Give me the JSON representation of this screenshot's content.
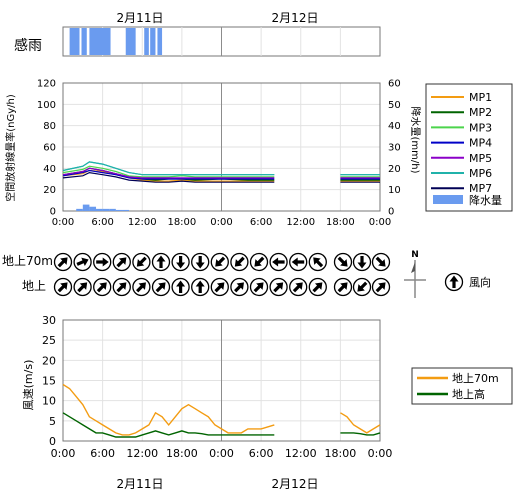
{
  "dates": {
    "day1": "2月11日",
    "day2": "2月12日"
  },
  "rain_label": "感雨",
  "x_ticks": [
    "0:00",
    "6:00",
    "12:00",
    "18:00",
    "0:00",
    "6:00",
    "12:00",
    "18:00",
    "0:00"
  ],
  "wind_dir_rows": [
    "地上70m",
    "地上"
  ],
  "wind_dir_legend": "風向",
  "compass_label": "N",
  "colors": {
    "MP1": "#f39c12",
    "MP2": "#006400",
    "MP3": "#4cd44c",
    "MP4": "#0000c8",
    "MP5": "#8b00c8",
    "MP6": "#20b2aa",
    "MP7": "#000055",
    "precip": "#6a9bef",
    "wind70": "#f39c12",
    "windGround": "#006400",
    "rain": "#6a9bef"
  },
  "chart_data": [
    {
      "type": "bar",
      "title": "感雨",
      "x_unit": "hours since 2月11日 0:00",
      "rain_intervals_hours": [
        [
          1.0,
          2.5
        ],
        [
          2.8,
          3.6
        ],
        [
          4.0,
          7.2
        ],
        [
          9.5,
          11.0
        ],
        [
          12.3,
          13.0
        ],
        [
          13.2,
          14.0
        ],
        [
          14.3,
          15.0
        ]
      ]
    },
    {
      "type": "line",
      "ylabel": "空間放射線量率(nGy/h)",
      "y2label": "降水量(mm/h)",
      "ylim": [
        0,
        120
      ],
      "y_ticks": [
        0,
        20,
        40,
        60,
        80,
        100,
        120
      ],
      "y2lim": [
        0,
        60
      ],
      "y2_ticks": [
        0,
        10,
        20,
        30,
        40,
        50,
        60
      ],
      "xlim_hours": [
        0,
        48
      ],
      "gap_hours": [
        32,
        42
      ],
      "series": [
        {
          "name": "MP1",
          "points": [
            [
              0,
              33
            ],
            [
              3,
              35
            ],
            [
              4,
              38
            ],
            [
              6,
              37
            ],
            [
              8,
              34
            ],
            [
              10,
              31
            ],
            [
              12,
              29
            ],
            [
              14,
              28
            ],
            [
              16,
              28
            ],
            [
              18,
              29
            ],
            [
              20,
              28
            ],
            [
              24,
              28
            ],
            [
              28,
              28
            ],
            [
              32,
              28
            ],
            [
              42,
              28
            ],
            [
              48,
              28
            ]
          ]
        },
        {
          "name": "MP2",
          "points": [
            [
              0,
              34
            ],
            [
              3,
              37
            ],
            [
              4,
              40
            ],
            [
              6,
              38
            ],
            [
              8,
              35
            ],
            [
              10,
              32
            ],
            [
              12,
              30
            ],
            [
              14,
              29
            ],
            [
              16,
              30
            ],
            [
              18,
              30
            ],
            [
              20,
              29
            ],
            [
              24,
              30
            ],
            [
              28,
              29
            ],
            [
              32,
              29
            ],
            [
              42,
              29
            ],
            [
              48,
              29
            ]
          ]
        },
        {
          "name": "MP3",
          "points": [
            [
              0,
              36
            ],
            [
              3,
              39
            ],
            [
              4,
              42
            ],
            [
              6,
              40
            ],
            [
              8,
              37
            ],
            [
              10,
              33
            ],
            [
              12,
              32
            ],
            [
              14,
              32
            ],
            [
              16,
              32
            ],
            [
              18,
              33
            ],
            [
              20,
              32
            ],
            [
              24,
              32
            ],
            [
              28,
              32
            ],
            [
              32,
              32
            ],
            [
              42,
              32
            ],
            [
              48,
              32
            ]
          ]
        },
        {
          "name": "MP4",
          "points": [
            [
              0,
              33
            ],
            [
              3,
              36
            ],
            [
              4,
              38
            ],
            [
              6,
              36
            ],
            [
              8,
              34
            ],
            [
              10,
              31
            ],
            [
              12,
              30
            ],
            [
              14,
              30
            ],
            [
              16,
              30
            ],
            [
              18,
              30
            ],
            [
              20,
              30
            ],
            [
              24,
              30
            ],
            [
              28,
              30
            ],
            [
              32,
              30
            ],
            [
              42,
              30
            ],
            [
              48,
              30
            ]
          ]
        },
        {
          "name": "MP5",
          "points": [
            [
              0,
              34
            ],
            [
              3,
              37
            ],
            [
              4,
              40
            ],
            [
              6,
              38
            ],
            [
              8,
              35
            ],
            [
              10,
              32
            ],
            [
              12,
              31
            ],
            [
              14,
              31
            ],
            [
              16,
              31
            ],
            [
              18,
              31
            ],
            [
              20,
              31
            ],
            [
              24,
              31
            ],
            [
              28,
              31
            ],
            [
              32,
              31
            ],
            [
              42,
              31
            ],
            [
              48,
              31
            ]
          ]
        },
        {
          "name": "MP6",
          "points": [
            [
              0,
              38
            ],
            [
              3,
              42
            ],
            [
              4,
              46
            ],
            [
              6,
              44
            ],
            [
              8,
              40
            ],
            [
              10,
              36
            ],
            [
              12,
              34
            ],
            [
              14,
              34
            ],
            [
              16,
              34
            ],
            [
              18,
              34
            ],
            [
              20,
              34
            ],
            [
              24,
              34
            ],
            [
              28,
              34
            ],
            [
              32,
              34
            ],
            [
              42,
              34
            ],
            [
              48,
              34
            ]
          ]
        },
        {
          "name": "MP7",
          "points": [
            [
              0,
              31
            ],
            [
              3,
              33
            ],
            [
              4,
              36
            ],
            [
              6,
              34
            ],
            [
              8,
              32
            ],
            [
              10,
              29
            ],
            [
              12,
              28
            ],
            [
              14,
              27
            ],
            [
              16,
              27
            ],
            [
              18,
              28
            ],
            [
              20,
              27
            ],
            [
              24,
              27
            ],
            [
              28,
              27
            ],
            [
              32,
              27
            ],
            [
              42,
              27
            ],
            [
              48,
              27
            ]
          ]
        },
        {
          "name": "降水量",
          "type": "bar",
          "points": [
            [
              2.5,
              1
            ],
            [
              3.5,
              3
            ],
            [
              4.5,
              2
            ],
            [
              5.5,
              1
            ],
            [
              6.5,
              1
            ],
            [
              7.5,
              1
            ],
            [
              8.5,
              0.5
            ],
            [
              9.5,
              0.5
            ]
          ]
        }
      ]
    },
    {
      "type": "table",
      "title": "風向",
      "times_hours": [
        0,
        2,
        4,
        6,
        8,
        10,
        12,
        14,
        16,
        18,
        20,
        22,
        24,
        26,
        28,
        30,
        32,
        42,
        44,
        46
      ],
      "rows": [
        {
          "name": "地上70m",
          "directions_deg": [
            45,
            67,
            90,
            45,
            225,
            0,
            180,
            180,
            225,
            225,
            225,
            270,
            270,
            315,
            null,
            null,
            null,
            135,
            180,
            135
          ]
        },
        {
          "name": "地上",
          "directions_deg": [
            45,
            45,
            45,
            45,
            45,
            45,
            0,
            0,
            45,
            45,
            45,
            45,
            45,
            45,
            null,
            null,
            null,
            45,
            225,
            45
          ]
        }
      ]
    },
    {
      "type": "line",
      "ylabel": "風速(m/s)",
      "ylim": [
        0,
        30
      ],
      "y_ticks": [
        0,
        5,
        10,
        15,
        20,
        25,
        30
      ],
      "xlim_hours": [
        0,
        48
      ],
      "gap_hours": [
        32,
        42
      ],
      "series": [
        {
          "name": "地上70m",
          "points": [
            [
              0,
              14
            ],
            [
              1,
              13
            ],
            [
              2,
              11
            ],
            [
              3,
              9
            ],
            [
              4,
              6
            ],
            [
              5,
              5
            ],
            [
              6,
              4
            ],
            [
              7,
              3
            ],
            [
              8,
              2
            ],
            [
              9,
              1.5
            ],
            [
              10,
              1.5
            ],
            [
              11,
              2
            ],
            [
              12,
              3
            ],
            [
              13,
              4
            ],
            [
              14,
              7
            ],
            [
              15,
              6
            ],
            [
              16,
              4
            ],
            [
              17,
              6
            ],
            [
              18,
              8
            ],
            [
              19,
              9
            ],
            [
              20,
              8
            ],
            [
              21,
              7
            ],
            [
              22,
              6
            ],
            [
              23,
              4
            ],
            [
              24,
              3
            ],
            [
              25,
              2
            ],
            [
              26,
              2
            ],
            [
              27,
              2
            ],
            [
              28,
              3
            ],
            [
              29,
              3
            ],
            [
              30,
              3
            ],
            [
              31,
              3.5
            ],
            [
              32,
              4
            ],
            [
              42,
              7
            ],
            [
              43,
              6
            ],
            [
              44,
              4
            ],
            [
              45,
              3
            ],
            [
              46,
              2
            ],
            [
              47,
              3
            ],
            [
              48,
              4
            ]
          ]
        },
        {
          "name": "地上高",
          "points": [
            [
              0,
              7
            ],
            [
              1,
              6
            ],
            [
              2,
              5
            ],
            [
              3,
              4
            ],
            [
              4,
              3
            ],
            [
              5,
              2
            ],
            [
              6,
              2
            ],
            [
              7,
              1.5
            ],
            [
              8,
              1
            ],
            [
              9,
              1
            ],
            [
              10,
              1
            ],
            [
              11,
              1
            ],
            [
              12,
              1.5
            ],
            [
              13,
              2
            ],
            [
              14,
              2.5
            ],
            [
              15,
              2
            ],
            [
              16,
              1.5
            ],
            [
              17,
              2
            ],
            [
              18,
              2.5
            ],
            [
              19,
              2
            ],
            [
              20,
              2
            ],
            [
              21,
              1.8
            ],
            [
              22,
              1.5
            ],
            [
              23,
              1.5
            ],
            [
              24,
              1.5
            ],
            [
              25,
              1.5
            ],
            [
              26,
              1.5
            ],
            [
              27,
              1.5
            ],
            [
              28,
              1.5
            ],
            [
              29,
              1.5
            ],
            [
              30,
              1.5
            ],
            [
              31,
              1.5
            ],
            [
              32,
              1.5
            ],
            [
              42,
              2
            ],
            [
              43,
              2
            ],
            [
              44,
              2
            ],
            [
              45,
              1.8
            ],
            [
              46,
              1.5
            ],
            [
              47,
              1.5
            ],
            [
              48,
              2
            ]
          ]
        }
      ]
    }
  ]
}
